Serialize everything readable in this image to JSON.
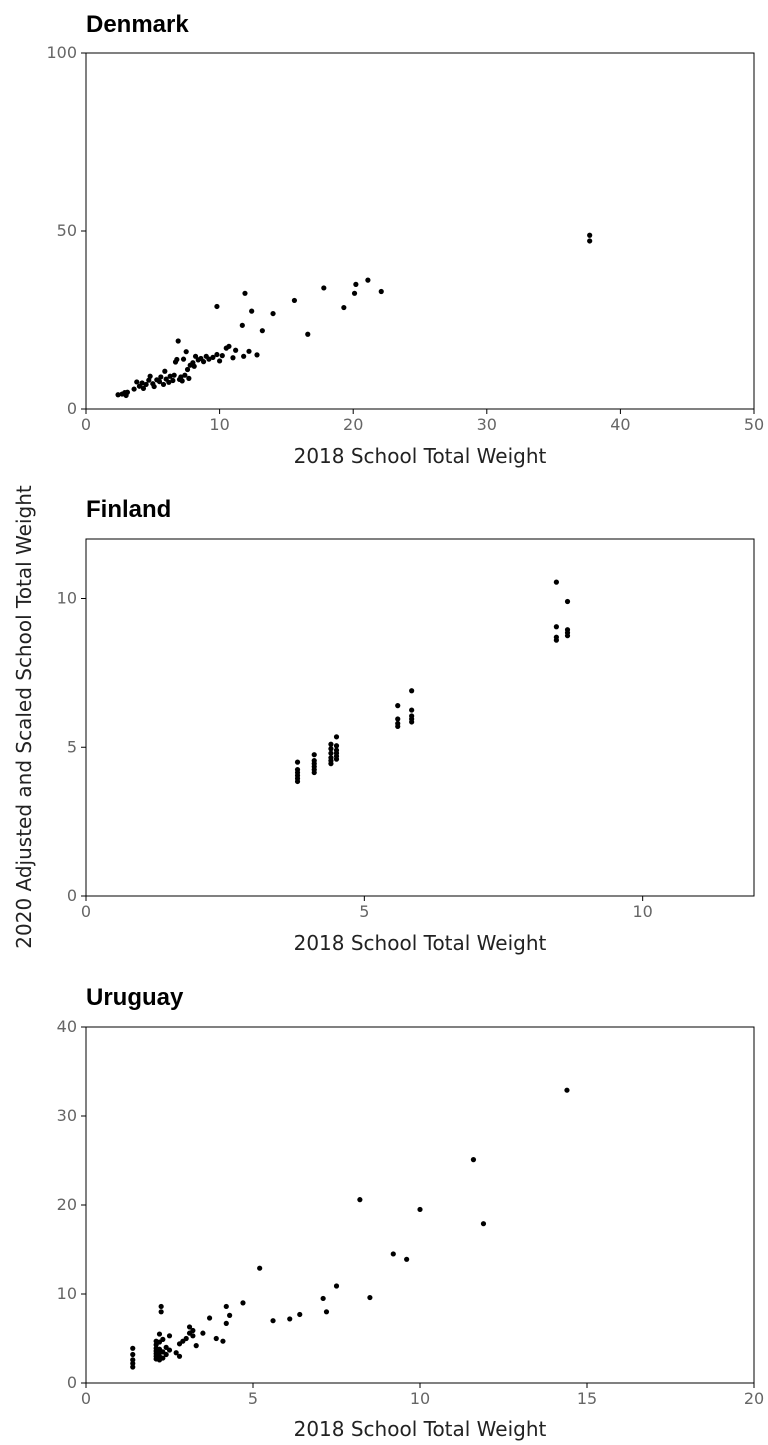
{
  "ylabel": "2020 Adjusted and Scaled School Total Weight",
  "chart_data": [
    {
      "type": "scatter",
      "title": "Denmark",
      "xlabel": "2018 School Total Weight",
      "xlim": [
        0,
        50
      ],
      "ylim": [
        0,
        100
      ],
      "xticks": [
        0,
        10,
        20,
        30,
        40,
        50
      ],
      "yticks": [
        0,
        50,
        100
      ],
      "points": [
        [
          2.4,
          4.0
        ],
        [
          2.7,
          4.2
        ],
        [
          2.9,
          4.6
        ],
        [
          3.0,
          3.8
        ],
        [
          3.1,
          4.7
        ],
        [
          3.6,
          5.6
        ],
        [
          3.8,
          7.6
        ],
        [
          4.0,
          6.4
        ],
        [
          4.2,
          7.3
        ],
        [
          4.3,
          5.8
        ],
        [
          4.5,
          6.9
        ],
        [
          4.7,
          8.1
        ],
        [
          4.8,
          9.2
        ],
        [
          5.0,
          7.1
        ],
        [
          5.1,
          6.3
        ],
        [
          5.3,
          8.2
        ],
        [
          5.5,
          7.7
        ],
        [
          5.6,
          9.0
        ],
        [
          5.8,
          6.9
        ],
        [
          5.9,
          10.6
        ],
        [
          6.0,
          8.4
        ],
        [
          6.2,
          7.5
        ],
        [
          6.3,
          9.2
        ],
        [
          6.5,
          8.0
        ],
        [
          6.6,
          9.5
        ],
        [
          6.7,
          13.2
        ],
        [
          6.8,
          13.9
        ],
        [
          6.9,
          19.1
        ],
        [
          7.0,
          8.3
        ],
        [
          7.1,
          9.0
        ],
        [
          7.2,
          7.9
        ],
        [
          7.3,
          14.0
        ],
        [
          7.4,
          9.5
        ],
        [
          7.5,
          16.1
        ],
        [
          7.6,
          11.1
        ],
        [
          7.7,
          8.6
        ],
        [
          7.8,
          12.3
        ],
        [
          8.0,
          13.0
        ],
        [
          8.1,
          12.0
        ],
        [
          8.2,
          14.8
        ],
        [
          8.4,
          13.8
        ],
        [
          8.6,
          14.2
        ],
        [
          8.8,
          13.3
        ],
        [
          9.0,
          14.8
        ],
        [
          9.2,
          14.0
        ],
        [
          9.5,
          14.5
        ],
        [
          9.8,
          15.3
        ],
        [
          10.0,
          13.5
        ],
        [
          10.2,
          15.0
        ],
        [
          10.5,
          17.1
        ],
        [
          10.7,
          17.6
        ],
        [
          11.0,
          14.4
        ],
        [
          11.2,
          16.5
        ],
        [
          11.8,
          14.8
        ],
        [
          12.2,
          16.2
        ],
        [
          12.8,
          15.2
        ],
        [
          9.8,
          28.8
        ],
        [
          11.7,
          23.5
        ],
        [
          11.9,
          32.5
        ],
        [
          12.4,
          27.5
        ],
        [
          13.2,
          22.0
        ],
        [
          14.0,
          26.8
        ],
        [
          15.6,
          30.5
        ],
        [
          16.6,
          21.0
        ],
        [
          17.8,
          34.0
        ],
        [
          19.3,
          28.5
        ],
        [
          20.1,
          32.5
        ],
        [
          20.2,
          35.0
        ],
        [
          21.1,
          36.2
        ],
        [
          22.1,
          33.0
        ],
        [
          37.7,
          48.8
        ],
        [
          37.7,
          47.2
        ]
      ]
    },
    {
      "type": "scatter",
      "title": "Finland",
      "xlabel": "2018 School Total Weight",
      "xlim": [
        0,
        12
      ],
      "ylim": [
        0,
        12
      ],
      "xticks": [
        0,
        5,
        10
      ],
      "yticks": [
        0,
        5,
        10
      ],
      "points": [
        [
          3.8,
          3.85
        ],
        [
          3.8,
          3.95
        ],
        [
          3.8,
          4.05
        ],
        [
          3.8,
          4.15
        ],
        [
          3.8,
          4.25
        ],
        [
          3.8,
          4.5
        ],
        [
          4.1,
          4.15
        ],
        [
          4.1,
          4.25
        ],
        [
          4.1,
          4.35
        ],
        [
          4.1,
          4.45
        ],
        [
          4.1,
          4.55
        ],
        [
          4.1,
          4.75
        ],
        [
          4.4,
          4.45
        ],
        [
          4.4,
          4.55
        ],
        [
          4.4,
          4.65
        ],
        [
          4.4,
          4.8
        ],
        [
          4.4,
          4.95
        ],
        [
          4.4,
          5.1
        ],
        [
          4.5,
          4.6
        ],
        [
          4.5,
          4.7
        ],
        [
          4.5,
          4.8
        ],
        [
          4.5,
          4.9
        ],
        [
          4.5,
          5.05
        ],
        [
          4.5,
          5.35
        ],
        [
          5.6,
          5.7
        ],
        [
          5.6,
          5.8
        ],
        [
          5.6,
          5.95
        ],
        [
          5.6,
          6.4
        ],
        [
          5.85,
          5.85
        ],
        [
          5.85,
          5.95
        ],
        [
          5.85,
          6.05
        ],
        [
          5.85,
          6.25
        ],
        [
          5.85,
          6.9
        ],
        [
          8.45,
          8.6
        ],
        [
          8.45,
          8.7
        ],
        [
          8.45,
          9.05
        ],
        [
          8.45,
          10.55
        ],
        [
          8.65,
          8.75
        ],
        [
          8.65,
          8.85
        ],
        [
          8.65,
          8.95
        ],
        [
          8.65,
          9.9
        ]
      ]
    },
    {
      "type": "scatter",
      "title": "Uruguay",
      "xlabel": "2018 School Total Weight",
      "xlim": [
        0,
        20
      ],
      "ylim": [
        0,
        40
      ],
      "xticks": [
        0,
        5,
        10,
        15,
        20
      ],
      "yticks": [
        0,
        10,
        20,
        30,
        40
      ],
      "points": [
        [
          1.4,
          1.8
        ],
        [
          1.4,
          2.2
        ],
        [
          1.4,
          2.6
        ],
        [
          1.4,
          3.2
        ],
        [
          1.4,
          3.9
        ],
        [
          2.1,
          2.7
        ],
        [
          2.1,
          3.0
        ],
        [
          2.1,
          3.3
        ],
        [
          2.1,
          3.6
        ],
        [
          2.1,
          3.9
        ],
        [
          2.1,
          4.3
        ],
        [
          2.1,
          4.7
        ],
        [
          2.2,
          2.6
        ],
        [
          2.2,
          3.0
        ],
        [
          2.2,
          3.4
        ],
        [
          2.2,
          3.8
        ],
        [
          2.2,
          4.6
        ],
        [
          2.2,
          5.5
        ],
        [
          2.25,
          8.0
        ],
        [
          2.25,
          8.6
        ],
        [
          2.3,
          2.8
        ],
        [
          2.3,
          3.5
        ],
        [
          2.3,
          4.9
        ],
        [
          2.4,
          3.2
        ],
        [
          2.4,
          4.0
        ],
        [
          2.5,
          3.7
        ],
        [
          2.5,
          5.3
        ],
        [
          2.7,
          3.4
        ],
        [
          2.8,
          3.0
        ],
        [
          2.8,
          4.4
        ],
        [
          2.9,
          4.7
        ],
        [
          3.0,
          5.0
        ],
        [
          3.1,
          6.3
        ],
        [
          3.1,
          5.6
        ],
        [
          3.2,
          5.9
        ],
        [
          3.2,
          5.3
        ],
        [
          3.3,
          4.2
        ],
        [
          3.5,
          5.6
        ],
        [
          3.7,
          7.3
        ],
        [
          3.9,
          5.0
        ],
        [
          4.1,
          4.7
        ],
        [
          4.2,
          6.7
        ],
        [
          4.2,
          8.6
        ],
        [
          4.3,
          7.6
        ],
        [
          4.7,
          9.0
        ],
        [
          5.2,
          12.9
        ],
        [
          5.6,
          7.0
        ],
        [
          6.1,
          7.2
        ],
        [
          6.4,
          7.7
        ],
        [
          7.1,
          9.5
        ],
        [
          7.2,
          8.0
        ],
        [
          7.5,
          10.9
        ],
        [
          8.2,
          20.6
        ],
        [
          8.5,
          9.6
        ],
        [
          9.2,
          14.5
        ],
        [
          9.6,
          13.9
        ],
        [
          10.0,
          19.5
        ],
        [
          11.6,
          25.1
        ],
        [
          11.9,
          17.9
        ],
        [
          14.4,
          32.9
        ]
      ]
    }
  ]
}
